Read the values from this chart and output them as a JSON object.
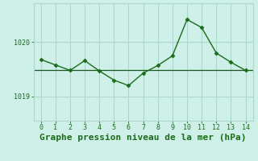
{
  "x": [
    0,
    1,
    2,
    3,
    4,
    5,
    6,
    7,
    8,
    9,
    10,
    11,
    12,
    13,
    14
  ],
  "y": [
    1019.68,
    1019.58,
    1019.48,
    1019.66,
    1019.47,
    1019.3,
    1019.2,
    1019.43,
    1019.57,
    1019.75,
    1020.42,
    1020.27,
    1019.8,
    1019.63,
    1019.48
  ],
  "line_color": "#1a6b1a",
  "marker_color": "#1a6b1a",
  "bg_color": "#cff0e8",
  "grid_color": "#aad8cc",
  "xlabel": "Graphe pression niveau de la mer (hPa)",
  "xlabel_color": "#1a6b1a",
  "xlabel_fontsize": 8,
  "ytick_labels": [
    "1019",
    "1020"
  ],
  "ytick_vals": [
    1019.0,
    1020.0
  ],
  "ylim": [
    1018.55,
    1020.72
  ],
  "xlim": [
    -0.5,
    14.5
  ],
  "tick_color": "#1a6b1a",
  "hline_y": 1019.48,
  "hline_color": "#1a5520"
}
